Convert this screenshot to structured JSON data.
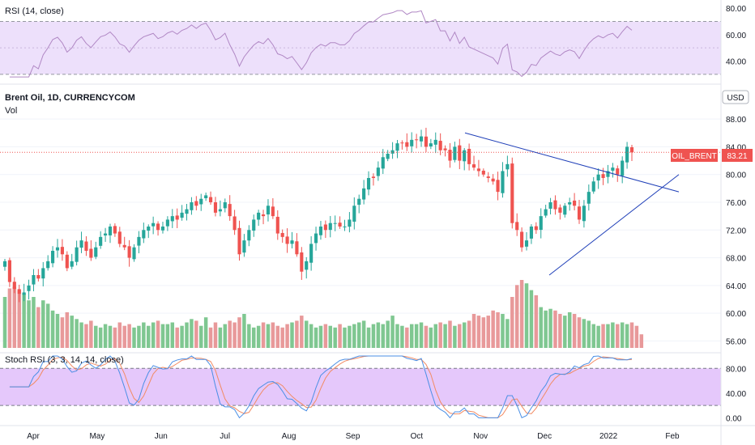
{
  "chart_data": {
    "type": "candlestick",
    "title": "Brent Oil, 1D, CURRENCYCOM",
    "subtitle": "Vol",
    "currency": "USD",
    "price_axis": {
      "ticks": [
        "88.00",
        "84.00",
        "80.00",
        "76.00",
        "72.00",
        "68.00",
        "64.00",
        "60.00",
        "56.00"
      ],
      "range": [
        55,
        90
      ]
    },
    "last_price": {
      "symbol": "OIL_BRENT",
      "value": "83.21"
    },
    "x_axis_labels": [
      "Apr",
      "May",
      "Jun",
      "Jul",
      "Aug",
      "Sep",
      "Oct",
      "Nov",
      "Dec",
      "2022",
      "Feb"
    ],
    "price_series": [
      67.5,
      64.5,
      63.5,
      62.8,
      63.0,
      64.0,
      65.5,
      65.0,
      66.5,
      67.5,
      69.0,
      69.5,
      68.5,
      66.5,
      67.5,
      69.5,
      70.5,
      69.0,
      68.0,
      69.5,
      71.0,
      71.5,
      72.5,
      71.5,
      70.0,
      69.5,
      68.0,
      69.5,
      71.0,
      72.0,
      72.5,
      73.0,
      72.0,
      72.5,
      73.5,
      74.0,
      73.5,
      74.5,
      75.0,
      76.0,
      75.5,
      76.5,
      77.0,
      76.0,
      74.5,
      75.0,
      76.0,
      74.0,
      72.0,
      68.5,
      70.5,
      72.0,
      73.5,
      74.5,
      74.0,
      75.5,
      74.0,
      71.5,
      71.0,
      70.0,
      70.5,
      68.5,
      66.0,
      67.5,
      70.0,
      71.5,
      72.5,
      72.0,
      73.0,
      73.0,
      72.5,
      72.5,
      73.5,
      75.5,
      76.5,
      78.0,
      79.5,
      79.5,
      81.0,
      82.5,
      83.0,
      83.5,
      84.5,
      84.5,
      84.0,
      85.0,
      85.0,
      85.5,
      84.0,
      84.5,
      85.0,
      83.5,
      83.5,
      82.0,
      84.0,
      82.0,
      83.5,
      81.5,
      81.0,
      80.5,
      80.0,
      79.5,
      79.0,
      77.5,
      80.5,
      81.5,
      73.0,
      72.0,
      69.5,
      70.5,
      72.5,
      72.0,
      74.0,
      75.0,
      76.0,
      75.0,
      74.5,
      75.5,
      76.0,
      75.5,
      73.5,
      75.5,
      77.5,
      79.0,
      80.0,
      79.5,
      80.5,
      81.0,
      80.0,
      82.0,
      84.0,
      83.2
    ],
    "volume_series": [
      30,
      35,
      36,
      34,
      32,
      28,
      30,
      24,
      28,
      26,
      22,
      20,
      18,
      21,
      19,
      17,
      15,
      14,
      16,
      13,
      12,
      14,
      13,
      12,
      15,
      13,
      14,
      12,
      13,
      15,
      13,
      15,
      16,
      14,
      14,
      15,
      12,
      13,
      15,
      17,
      16,
      13,
      18,
      12,
      15,
      12,
      14,
      16,
      15,
      18,
      20,
      14,
      12,
      13,
      15,
      14,
      15,
      13,
      12,
      14,
      15,
      16,
      19,
      16,
      14,
      12,
      13,
      14,
      13,
      12,
      14,
      12,
      13,
      14,
      15,
      16,
      12,
      14,
      15,
      14,
      16,
      19,
      14,
      13,
      12,
      14,
      14,
      15,
      13,
      12,
      14,
      15,
      14,
      16,
      13,
      14,
      15,
      16,
      20,
      19,
      18,
      19,
      22,
      21,
      20,
      17,
      30,
      37,
      40,
      38,
      34,
      31,
      24,
      22,
      23,
      22,
      20,
      19,
      21,
      20,
      18,
      17,
      16,
      14,
      13,
      14,
      14,
      15,
      14,
      15,
      14,
      15,
      13,
      8
    ],
    "trend_lines": [
      {
        "name": "falling-resistance",
        "from": [
          86.0,
          0
        ],
        "to": [
          77.5,
          1
        ]
      },
      {
        "name": "rising-support",
        "from": [
          65.5,
          0
        ],
        "to": [
          80.0,
          1
        ]
      }
    ],
    "rsi": {
      "title": "RSI (14, close)",
      "ticks": [
        "80.00",
        "60.00",
        "40.00"
      ],
      "range": [
        25,
        85
      ],
      "upper": 70,
      "lower": 30
    },
    "stoch_rsi": {
      "title": "Stoch RSI (3, 3, 14, 14, close)",
      "ticks": [
        "80.00",
        "40.00",
        "0.00"
      ],
      "range": [
        -10,
        100
      ],
      "upper": 80,
      "lower": 20
    }
  },
  "colors": {
    "up": "#26a69a",
    "down": "#ef5350",
    "volume_up": "#7fc791",
    "volume_down": "#e8999a",
    "rsi_line": "#b087c4",
    "rsi_band": "#ede0fb",
    "stoch_k": "#4b8fe5",
    "stoch_d": "#f28b63",
    "stoch_band": "#e5c8fb",
    "trend_line": "#1f3fb8",
    "price_line": "#ef5350"
  }
}
